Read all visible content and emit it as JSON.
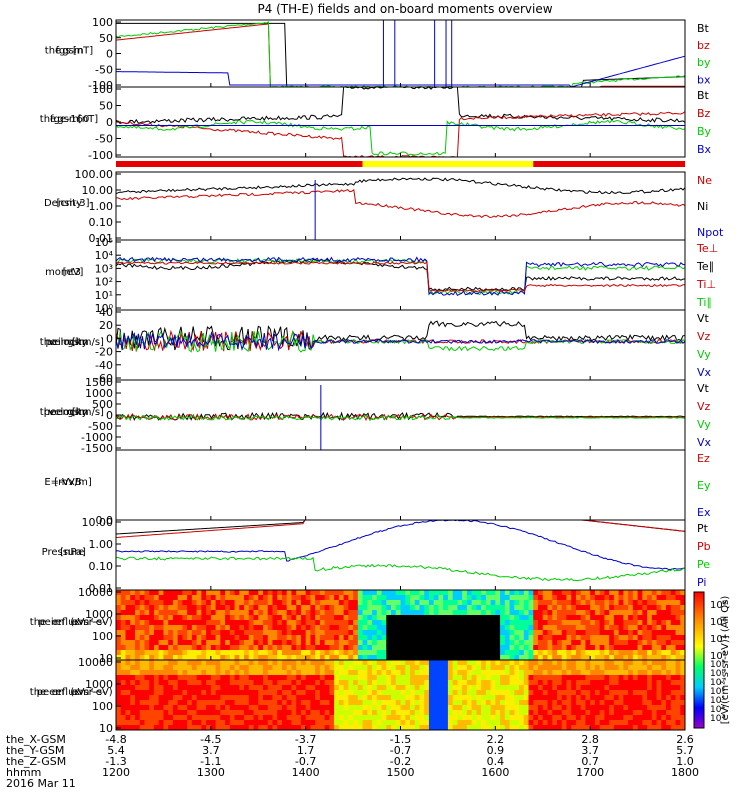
{
  "chart_data": {
    "type": "line",
    "title": "P4 (TH-E) fields and on-board moments overview",
    "x": {
      "tick_labels": [
        "1200",
        "1300",
        "1400",
        "1500",
        "1600",
        "1700",
        "1800"
      ],
      "range": [
        1200,
        1800
      ],
      "ephemeris": [
        {
          "label": "the_X-GSM",
          "values": [
            "-4.8",
            "-4.5",
            "-3.7",
            "-1.5",
            "2.2",
            "2.8",
            "2.6"
          ]
        },
        {
          "label": "the_Y-GSM",
          "values": [
            "5.4",
            "3.7",
            "1.7",
            "-0.7",
            "0.9",
            "3.7",
            "5.7"
          ]
        },
        {
          "label": "the_Z-GSM",
          "values": [
            "-1.3",
            "-1.1",
            "-0.7",
            "-0.2",
            "0.4",
            "0.7",
            "1.0"
          ]
        },
        {
          "label": "hhmm",
          "values": [
            "1200",
            "1300",
            "1400",
            "1500",
            "1600",
            "1700",
            "1800"
          ]
        }
      ],
      "date": "2016 Mar 11"
    },
    "panels": [
      {
        "ylabel": [
          "the",
          "fgs",
          "gsm",
          "[nT]"
        ],
        "ticks": [
          "100",
          "50",
          "0",
          "-50",
          "-100"
        ],
        "series": [
          {
            "name": "Bt",
            "color": "#000000"
          },
          {
            "name": "bz",
            "color": "#cc0000"
          },
          {
            "name": "by",
            "color": "#00cc00"
          },
          {
            "name": "bx",
            "color": "#0000cc"
          }
        ]
      },
      {
        "ylabel": [
          "the",
          "fge",
          "gsm",
          "-160",
          "[nT]"
        ],
        "ticks": [
          "100",
          "50",
          "0",
          "-50",
          "-100"
        ],
        "series": [
          {
            "name": "Bt",
            "color": "#000000"
          },
          {
            "name": "Bz",
            "color": "#cc0000"
          },
          {
            "name": "By",
            "color": "#00cc00"
          },
          {
            "name": "Bx",
            "color": "#0000cc"
          }
        ]
      },
      {
        "ylabel": [
          "Density",
          "[cm-3]"
        ],
        "ticks": [
          "100.00",
          "10.00",
          "1.00",
          "0.10",
          "0.01"
        ],
        "series": [
          {
            "name": "Ne",
            "color": "#cc0000"
          },
          {
            "name": "Ni",
            "color": "#000000"
          },
          {
            "name": "Npot",
            "color": "#0000cc"
          }
        ]
      },
      {
        "ylabel": [
          "momt3",
          "[eV]"
        ],
        "ticks": [
          "10⁵",
          "10⁴",
          "10³",
          "10²",
          "10¹",
          "10⁰"
        ],
        "series": [
          {
            "name": "Te⊥",
            "color": "#cc0000"
          },
          {
            "name": "Te∥",
            "color": "#000000"
          },
          {
            "name": "Ti⊥",
            "color": "#cc0000"
          },
          {
            "name": "Ti∥",
            "color": "#00cc00"
          }
        ]
      },
      {
        "ylabel": [
          "the",
          "peim",
          "velocity",
          "gsm",
          "[km/s]"
        ],
        "ticks": [
          "40",
          "20",
          "0",
          "-20",
          "-40",
          "-60"
        ],
        "series": [
          {
            "name": "Vt",
            "color": "#000000"
          },
          {
            "name": "Vz",
            "color": "#cc0000"
          },
          {
            "name": "Vy",
            "color": "#00cc00"
          },
          {
            "name": "Vx",
            "color": "#0000cc"
          }
        ]
      },
      {
        "ylabel": [
          "the",
          "peem",
          "velocity",
          "gsm",
          "[km/s]"
        ],
        "ticks": [
          "1500",
          "1000",
          "500",
          "0",
          "-500",
          "-1000",
          "-1500"
        ],
        "series": [
          {
            "name": "Vt",
            "color": "#000000"
          },
          {
            "name": "Vz",
            "color": "#cc0000"
          },
          {
            "name": "Vy",
            "color": "#00cc00"
          },
          {
            "name": "Vx",
            "color": "#0000cc"
          }
        ]
      },
      {
        "ylabel": [
          "E=-VxB",
          "[mV/m]"
        ],
        "ticks": [
          "0.0"
        ],
        "series": [
          {
            "name": "Ez",
            "color": "#cc0000"
          },
          {
            "name": "Ey",
            "color": "#00cc00"
          },
          {
            "name": "Ex",
            "color": "#0000cc"
          }
        ]
      },
      {
        "ylabel": [
          "Pressure",
          "[nPa]"
        ],
        "ticks": [
          "10.00",
          "1.00",
          "0.10",
          "0.01"
        ],
        "series": [
          {
            "name": "Pt",
            "color": "#000000"
          },
          {
            "name": "Pb",
            "color": "#cc0000"
          },
          {
            "name": "Pe",
            "color": "#00cc00"
          },
          {
            "name": "Pi",
            "color": "#0000cc"
          }
        ]
      },
      {
        "ylabel": [
          "the",
          "peir",
          "en",
          "eflux",
          "eV",
          "(cm²-s-",
          "sr-eV)"
        ],
        "ticks": [
          "10000",
          "1000",
          "100",
          "10"
        ],
        "spectrogram": true
      },
      {
        "ylabel": [
          "the",
          "peer",
          "en",
          "eflux",
          "eV",
          "(cm²-s-",
          "sr-eV)"
        ],
        "ticks": [
          "10000",
          "1000",
          "100",
          "10"
        ],
        "spectrogram": true
      }
    ],
    "colorbar": {
      "ion": [
        "10⁸",
        "10⁶",
        "10⁴",
        "10²"
      ],
      "electron": [
        "10⁹",
        "10⁸",
        "10⁷",
        "10⁶",
        "10⁵",
        "10⁴",
        "10³"
      ],
      "label": "[eV/(cm²-s-sr-eV)] (All Qs)"
    },
    "mode_bar": [
      {
        "from": 1200,
        "to": 1460,
        "color": "#e60000"
      },
      {
        "from": 1460,
        "to": 1640,
        "color": "#ffff00"
      },
      {
        "from": 1640,
        "to": 1800,
        "color": "#e60000"
      }
    ]
  }
}
